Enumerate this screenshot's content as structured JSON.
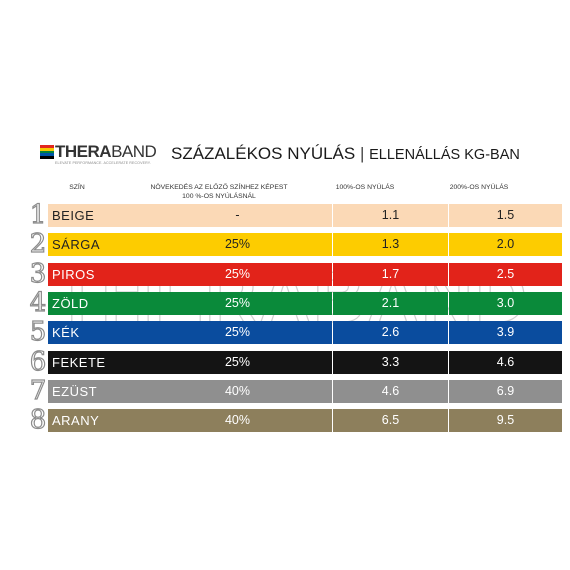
{
  "brand": {
    "name_bold": "THERA",
    "name_light": "BAND",
    "tagline": "ELEVATE PERFORMANCE. ACCELERATE RECOVERY.",
    "stripe_colors": [
      "#e2271f",
      "#f7c900",
      "#00843d",
      "#0054a6",
      "#000000"
    ]
  },
  "title": {
    "main": "SZÁZALÉKOS NYÚLÁS",
    "separator": "|",
    "sub": "ELLENÁLLÁS KG-BAN"
  },
  "headers": {
    "color": "SZÍN",
    "increase_line1": "NÖVEKEDÉS AZ ELŐZŐ SZÍNHEZ KÉPEST",
    "increase_line2": "100 %-OS NYÚLÁSNÁL",
    "stretch100": "100%-OS NYÚLÁS",
    "stretch200": "200%-OS NYÚLÁS"
  },
  "watermark": "THERABAND",
  "rows": [
    {
      "num": "1",
      "name": "BEIGE",
      "increase": "-",
      "v100": "1.1",
      "v200": "1.5",
      "bg": "#fbd9b6",
      "fg": "#222222"
    },
    {
      "num": "2",
      "name": "SÁRGA",
      "increase": "25%",
      "v100": "1.3",
      "v200": "2.0",
      "bg": "#fdcc00",
      "fg": "#222222"
    },
    {
      "num": "3",
      "name": "PIROS",
      "increase": "25%",
      "v100": "1.7",
      "v200": "2.5",
      "bg": "#e2231a",
      "fg": "#ffffff"
    },
    {
      "num": "4",
      "name": "ZÖLD",
      "increase": "25%",
      "v100": "2.1",
      "v200": "3.0",
      "bg": "#0a8a3a",
      "fg": "#ffffff"
    },
    {
      "num": "5",
      "name": "KÉK",
      "increase": "25%",
      "v100": "2.6",
      "v200": "3.9",
      "bg": "#0a4c9e",
      "fg": "#ffffff"
    },
    {
      "num": "6",
      "name": "FEKETE",
      "increase": "25%",
      "v100": "3.3",
      "v200": "4.6",
      "bg": "#141414",
      "fg": "#ffffff"
    },
    {
      "num": "7",
      "name": "EZÜST",
      "increase": "40%",
      "v100": "4.6",
      "v200": "6.9",
      "bg": "#8f8f8f",
      "fg": "#ffffff"
    },
    {
      "num": "8",
      "name": "ARANY",
      "increase": "40%",
      "v100": "6.5",
      "v200": "9.5",
      "bg": "#8d7f5c",
      "fg": "#ffffff"
    }
  ]
}
